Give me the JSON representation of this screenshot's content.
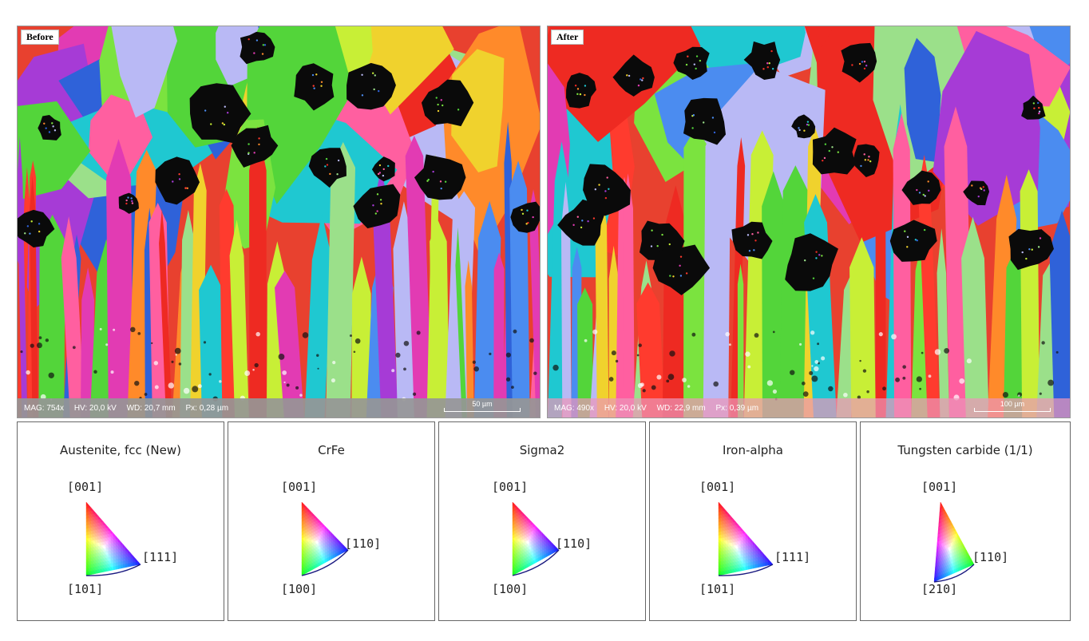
{
  "before": {
    "label": "Before",
    "info": {
      "mag": "MAG: 754x",
      "hv": "HV: 20,0 kV",
      "wd": "WD: 20,7 mm",
      "px": "Px: 0,28 µm"
    },
    "scale_bar": "50 µm"
  },
  "after": {
    "label": "After",
    "info": {
      "mag": "MAG: 490x",
      "hv": "HV: 20,0 kV",
      "wd": "WD: 22,9 mm",
      "px": "Px: 0,39 µm"
    },
    "scale_bar": "100 µm"
  },
  "legends": [
    {
      "title": "Austenite, fcc (New)",
      "top": "[001]",
      "right": "[111]",
      "bottom": "[101]"
    },
    {
      "title": "CrFe",
      "top": "[001]",
      "right": "[110]",
      "bottom": "[100]"
    },
    {
      "title": "Sigma2",
      "top": "[001]",
      "right": "[110]",
      "bottom": "[100]"
    },
    {
      "title": "Iron-alpha",
      "top": "[001]",
      "right": "[111]",
      "bottom": "[101]"
    },
    {
      "title": "Tungsten carbide (1/1)",
      "top": "[001]",
      "right": "[110]",
      "bottom": "[210]"
    }
  ],
  "colors": {
    "ipf_red": "#ff0000",
    "ipf_green": "#00d000",
    "ipf_blue": "#0000ff",
    "grain_palette": [
      "#ee2a22",
      "#ff3b2e",
      "#53d53a",
      "#7be33f",
      "#c8ef36",
      "#f0d22d",
      "#ff8a2a",
      "#2f62d9",
      "#4b8cf0",
      "#a63bd6",
      "#e23bb3",
      "#ff5fa0",
      "#1fc8d1",
      "#9be08a",
      "#b9b9f5"
    ]
  }
}
